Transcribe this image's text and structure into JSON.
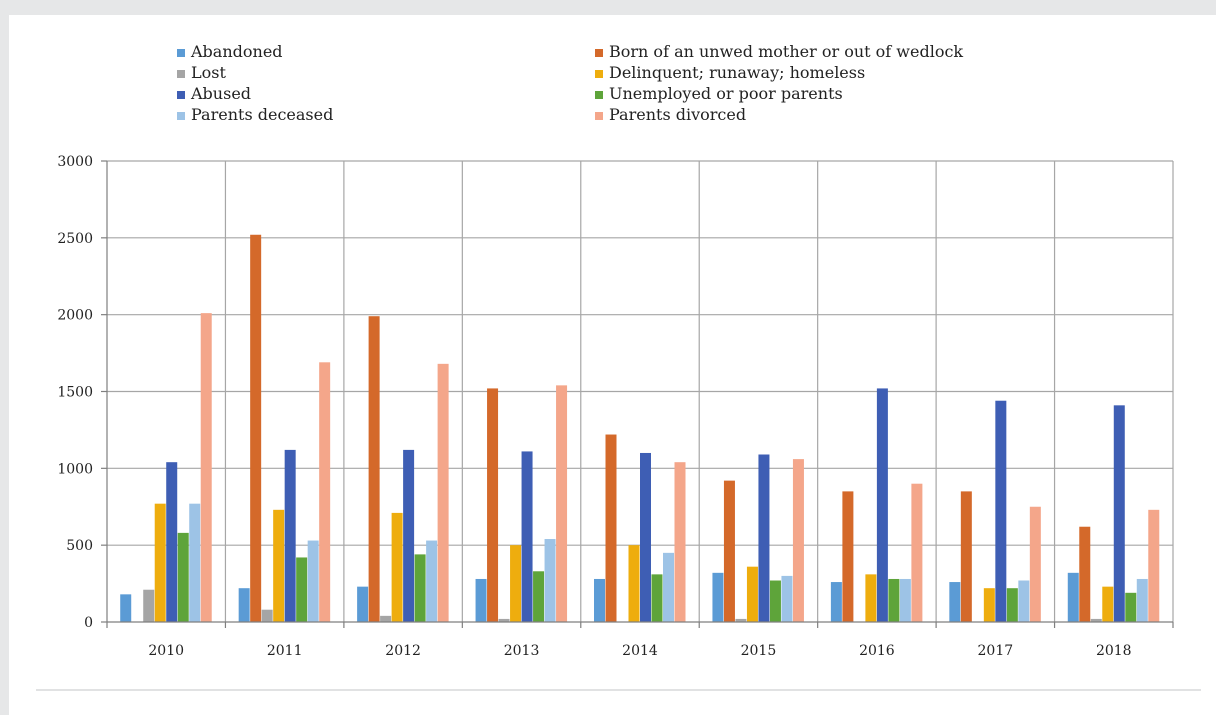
{
  "chart_data": {
    "type": "bar",
    "title": "",
    "xlabel": "",
    "ylabel": "",
    "categories": [
      "2010",
      "2011",
      "2012",
      "2013",
      "2014",
      "2015",
      "2016",
      "2017",
      "2018"
    ],
    "ylim": [
      0,
      3000
    ],
    "yticks": [
      0,
      500,
      1000,
      1500,
      2000,
      2500,
      3000
    ],
    "grid": true,
    "legend_position": "top",
    "series": [
      {
        "name": "Abandoned",
        "color": "#5b9bd5",
        "values": [
          180,
          220,
          230,
          280,
          280,
          320,
          260,
          260,
          320
        ]
      },
      {
        "name": "Born of an unwed mother or out of wedlock",
        "color": "#d4692a",
        "values": [
          0,
          2520,
          1990,
          1520,
          1220,
          920,
          850,
          850,
          620
        ]
      },
      {
        "name": "Lost",
        "color": "#a5a5a5",
        "values": [
          210,
          80,
          40,
          20,
          0,
          20,
          0,
          0,
          20
        ]
      },
      {
        "name": "Delinquent; runaway; homeless",
        "color": "#eead0e",
        "values": [
          770,
          730,
          710,
          500,
          500,
          360,
          310,
          220,
          230
        ]
      },
      {
        "name": "Abused",
        "color": "#3e5eb4",
        "values": [
          1040,
          1120,
          1120,
          1110,
          1100,
          1090,
          1520,
          1440,
          1410
        ]
      },
      {
        "name": "Unemployed or poor parents",
        "color": "#5ea43a",
        "values": [
          580,
          420,
          440,
          330,
          310,
          270,
          280,
          220,
          190
        ]
      },
      {
        "name": "Parents deceased",
        "color": "#9dc3e6",
        "values": [
          770,
          530,
          530,
          540,
          450,
          300,
          280,
          270,
          280
        ]
      },
      {
        "name": "Parents divorced",
        "color": "#f4a68a",
        "values": [
          2010,
          1690,
          1680,
          1540,
          1040,
          1060,
          900,
          750,
          730
        ]
      }
    ]
  }
}
